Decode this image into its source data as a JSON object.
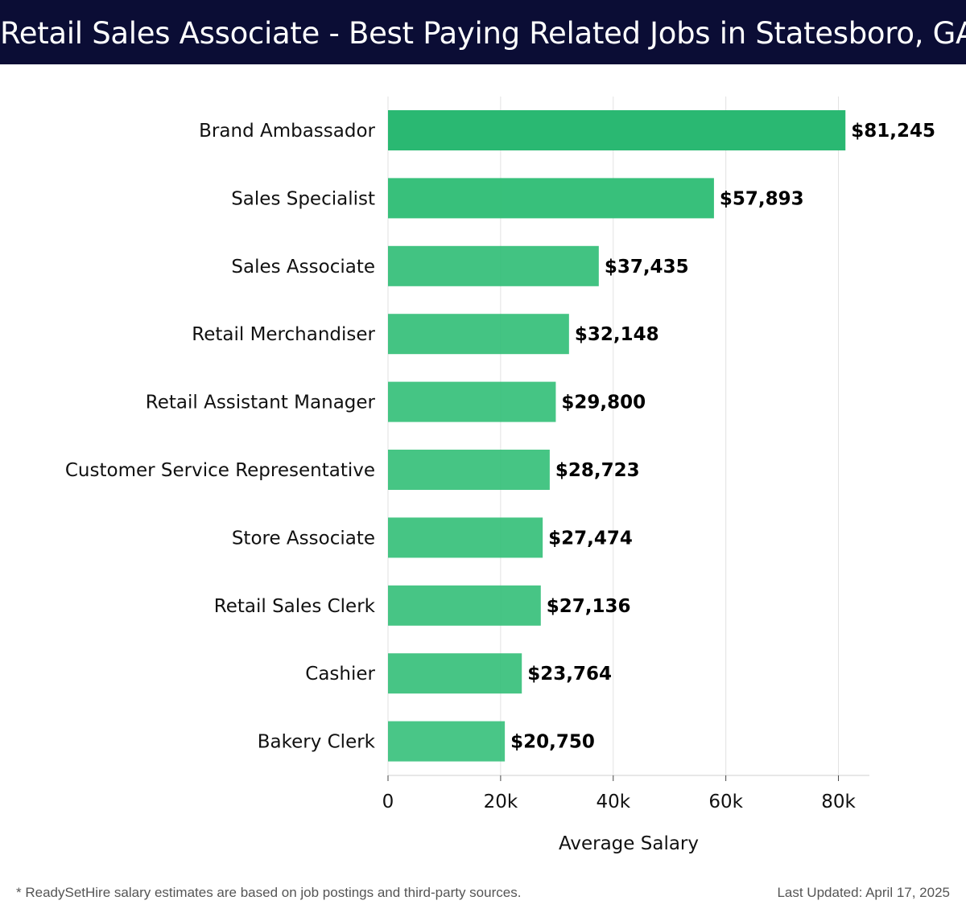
{
  "header": {
    "title": "Retail Sales Associate - Best Paying Related Jobs in Statesboro, GA"
  },
  "chart_data": {
    "type": "bar",
    "orientation": "horizontal",
    "categories": [
      "Brand Ambassador",
      "Sales Specialist",
      "Sales Associate",
      "Retail Merchandiser",
      "Retail Assistant Manager",
      "Customer Service Representative",
      "Store Associate",
      "Retail Sales Clerk",
      "Cashier",
      "Bakery Clerk"
    ],
    "values": [
      81245,
      57893,
      37435,
      32148,
      29800,
      28723,
      27474,
      27136,
      23764,
      20750
    ],
    "value_labels": [
      "$81,245",
      "$57,893",
      "$37,435",
      "$32,148",
      "$29,800",
      "$28,723",
      "$27,474",
      "$27,136",
      "$23,764",
      "$20,750"
    ],
    "xlabel": "Average Salary",
    "ylabel": "",
    "xlim": [
      0,
      85500
    ],
    "xticks": [
      0,
      20000,
      40000,
      60000,
      80000
    ],
    "xtick_labels": [
      "0",
      "20k",
      "40k",
      "60k",
      "80k"
    ],
    "grid": true,
    "bar_color": "#2dbd74",
    "highlight_color": "#2ab872"
  },
  "footer": {
    "note": "* ReadySetHire salary estimates are based on job postings and third-party sources.",
    "updated": "Last Updated: April 17, 2025"
  }
}
